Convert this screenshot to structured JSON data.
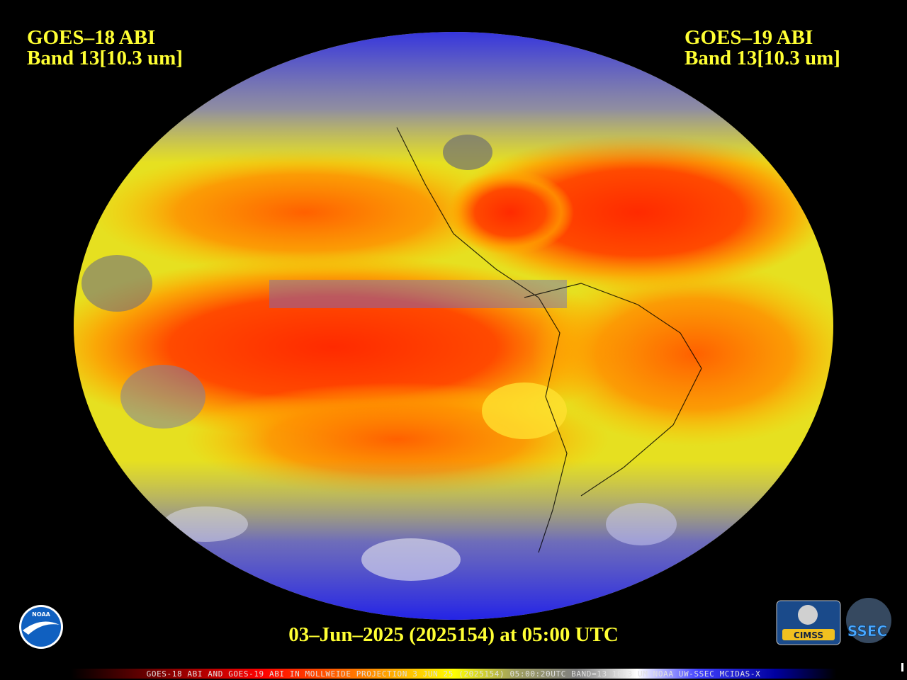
{
  "header": {
    "left": {
      "title": "GOES–18 ABI",
      "band": "Band 13[10.3 um]"
    },
    "right": {
      "title": "GOES–19 ABI",
      "band": "Band 13[10.3 um]"
    }
  },
  "timestamp": "03–Jun–2025 (2025154) at 05:00 UTC",
  "footer": "GOES-18 ABI AND GOES-19 ABI IN MOLLWEIDE PROJECTION 3 JUN 25 (2025154) 05:00:20UTC BAND=13 10.3 UM NOAA UW-SSEC MCIDAS-X",
  "logos": {
    "noaa": "NOAA",
    "cimss": "CIMSS",
    "ssec": "SSEC"
  }
}
